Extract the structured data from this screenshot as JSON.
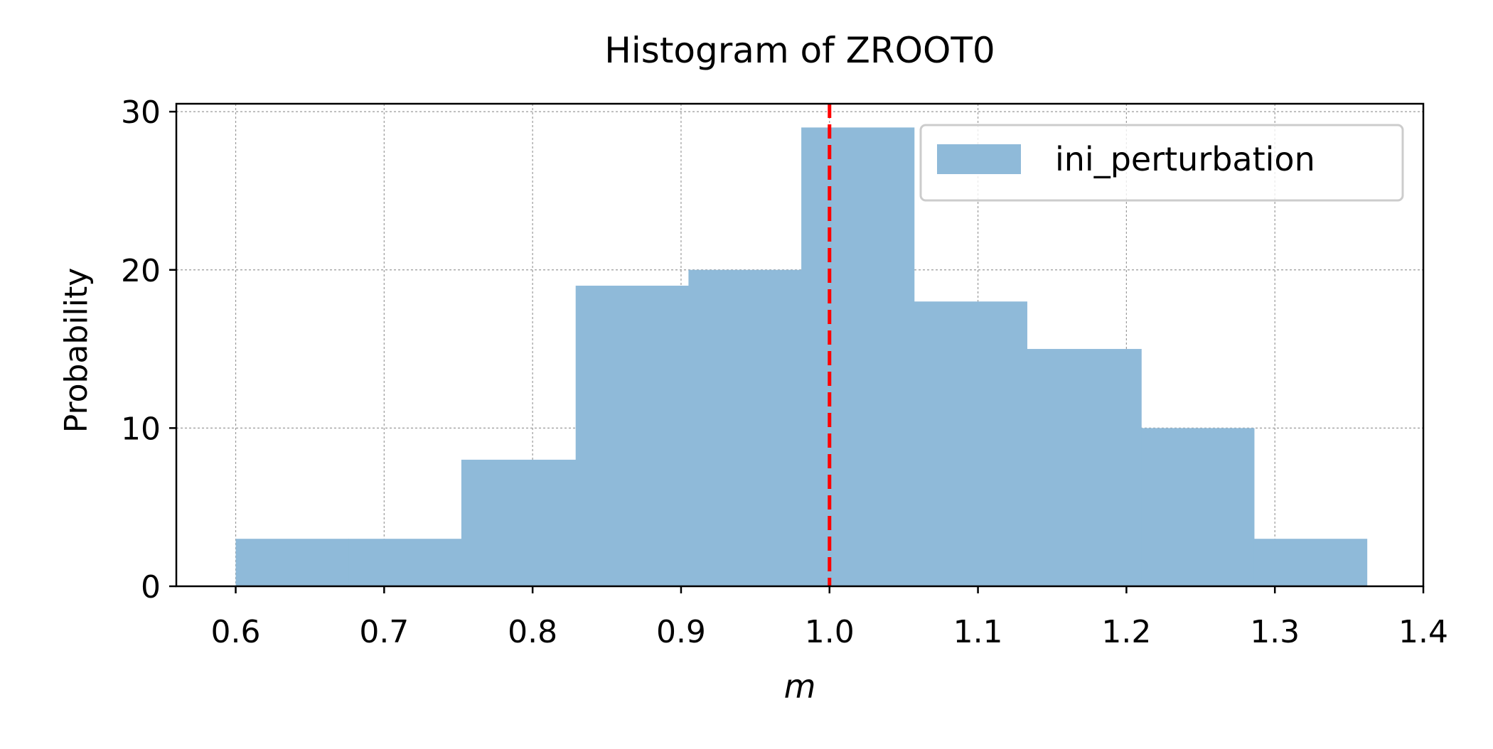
{
  "chart_data": {
    "type": "histogram",
    "title": "Histogram of ZROOT0",
    "xlabel": "m",
    "ylabel": "Probability",
    "xlim": [
      0.56,
      1.4
    ],
    "ylim": [
      0,
      30.5
    ],
    "x_ticks": [
      "0.6",
      "0.7",
      "0.8",
      "0.9",
      "1.0",
      "1.1",
      "1.2",
      "1.3",
      "1.4"
    ],
    "y_ticks": [
      "0",
      "10",
      "20",
      "30"
    ],
    "grid": true,
    "legend_position": "top-right",
    "series": [
      {
        "name": "ini_perturbation",
        "color": "#8fbad9",
        "bin_edges": [
          0.6,
          0.676,
          0.752,
          0.829,
          0.905,
          0.981,
          1.057,
          1.133,
          1.21,
          1.286,
          1.362
        ],
        "values": [
          3,
          3,
          8,
          19,
          20,
          29,
          18,
          15,
          10,
          3
        ]
      }
    ],
    "reference_line": {
      "x": 1.0,
      "color": "#ff0000",
      "style": "dashed"
    }
  }
}
